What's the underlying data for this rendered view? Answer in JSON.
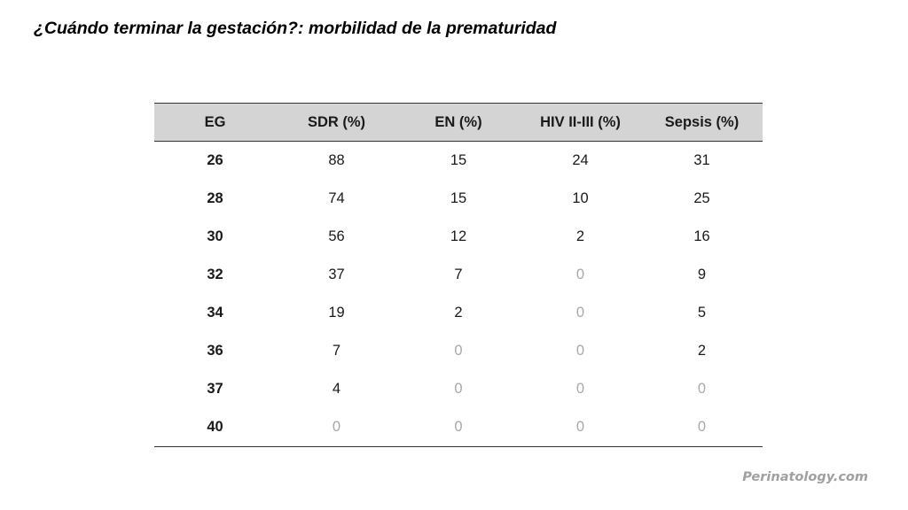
{
  "title": "¿Cuándo terminar la gestación?: morbilidad de la prematuridad",
  "table": {
    "headers": [
      "EG",
      "SDR (%)",
      "EN (%)",
      "HIV II-III (%)",
      "Sepsis (%)"
    ],
    "rows": [
      [
        "26",
        "88",
        "15",
        "24",
        "31"
      ],
      [
        "28",
        "74",
        "15",
        "10",
        "25"
      ],
      [
        "30",
        "56",
        "12",
        "2",
        "16"
      ],
      [
        "32",
        "37",
        "7",
        "0",
        "9"
      ],
      [
        "34",
        "19",
        "2",
        "0",
        "5"
      ],
      [
        "36",
        "7",
        "0",
        "0",
        "2"
      ],
      [
        "37",
        "4",
        "0",
        "0",
        "0"
      ],
      [
        "40",
        "0",
        "0",
        "0",
        "0"
      ]
    ]
  },
  "watermark": "Perinatology.com",
  "colors": {
    "header_bg": "#d4d4d4",
    "zero_text": "#a8a8a8",
    "text": "#1a1a1a",
    "watermark": "#a0a0a0"
  }
}
